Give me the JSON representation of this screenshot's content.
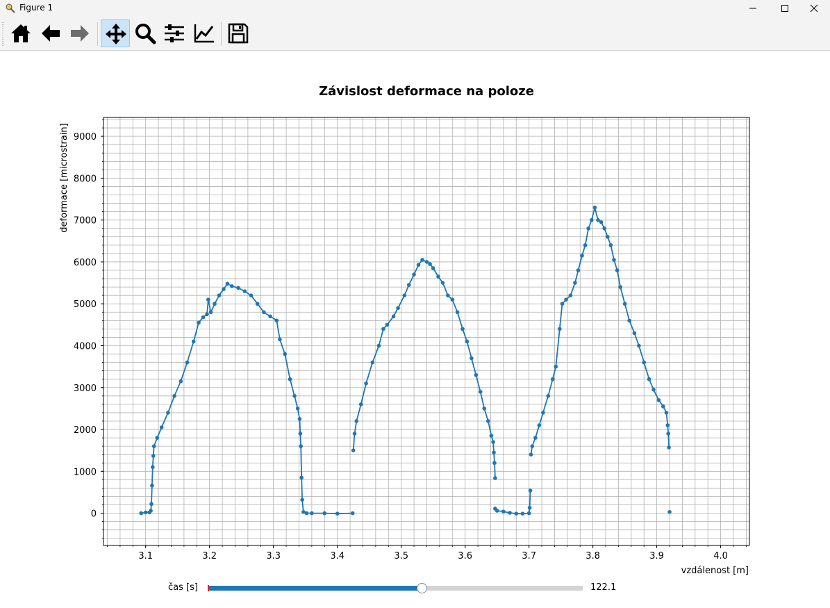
{
  "window": {
    "title": "Figure 1",
    "icons": [
      "app-icon",
      "minimize-icon",
      "maximize-icon",
      "close-icon"
    ]
  },
  "toolbar": {
    "buttons": [
      {
        "name": "home-button",
        "icon": "home-icon"
      },
      {
        "name": "back-button",
        "icon": "arrow-left-icon"
      },
      {
        "name": "forward-button",
        "icon": "arrow-right-icon"
      },
      {
        "name": "pan-button",
        "icon": "move-icon",
        "active": true
      },
      {
        "name": "zoom-button",
        "icon": "magnifier-icon"
      },
      {
        "name": "subplots-button",
        "icon": "sliders-icon"
      },
      {
        "name": "edit-axis-button",
        "icon": "chart-line-icon"
      },
      {
        "name": "save-button",
        "icon": "floppy-disk-icon"
      }
    ]
  },
  "slider": {
    "label": "čas [s]",
    "value_text": "122.1",
    "fill_fraction": 0.57
  },
  "colors": {
    "series": "#1f77b4",
    "grid": "#b0b0b0",
    "active_tool": "#cce4f7"
  },
  "chart_data": {
    "type": "line",
    "title": "Závislost deformace na poloze",
    "xlabel": "vzdálenost [m]",
    "ylabel": "deformace [microstrain]",
    "xlim": [
      3.034,
      4.045
    ],
    "ylim": [
      -770,
      9450
    ],
    "xticks": [
      3.1,
      3.2,
      3.3,
      3.4,
      3.5,
      3.6,
      3.7,
      3.8,
      3.9,
      4.0
    ],
    "xtick_labels": [
      "3.1",
      "3.2",
      "3.3",
      "3.4",
      "3.5",
      "3.6",
      "3.7",
      "3.8",
      "3.9",
      "4.0"
    ],
    "yticks": [
      0,
      1000,
      2000,
      3000,
      4000,
      5000,
      6000,
      7000,
      8000,
      9000
    ],
    "ytick_labels": [
      "0",
      "1000",
      "2000",
      "3000",
      "4000",
      "5000",
      "6000",
      "7000",
      "8000",
      "9000"
    ],
    "grid": true,
    "minor_grid": true,
    "markers": true,
    "series": [
      {
        "values": [
          [
            3.093,
            0
          ],
          [
            3.1,
            20
          ],
          [
            3.106,
            20
          ],
          [
            3.108,
            60
          ],
          [
            3.109,
            220
          ],
          [
            3.11,
            660
          ],
          [
            3.111,
            1100
          ],
          [
            3.112,
            1370
          ],
          [
            3.113,
            1600
          ],
          [
            3.118,
            1800
          ],
          [
            3.125,
            2050
          ],
          [
            3.135,
            2400
          ],
          [
            3.145,
            2800
          ],
          [
            3.155,
            3150
          ],
          [
            3.165,
            3600
          ],
          [
            3.175,
            4100
          ],
          [
            3.183,
            4550
          ],
          [
            3.19,
            4680
          ],
          [
            3.196,
            4750
          ],
          [
            3.198,
            5100
          ],
          [
            3.202,
            4800
          ],
          [
            3.208,
            5000
          ],
          [
            3.215,
            5200
          ],
          [
            3.222,
            5350
          ],
          [
            3.228,
            5480
          ],
          [
            3.235,
            5420
          ],
          [
            3.245,
            5380
          ],
          [
            3.255,
            5300
          ],
          [
            3.265,
            5200
          ],
          [
            3.275,
            5000
          ],
          [
            3.285,
            4800
          ],
          [
            3.295,
            4700
          ],
          [
            3.305,
            4600
          ],
          [
            3.31,
            4150
          ],
          [
            3.318,
            3800
          ],
          [
            3.326,
            3200
          ],
          [
            3.333,
            2800
          ],
          [
            3.338,
            2500
          ],
          [
            3.341,
            2250
          ],
          [
            3.342,
            1900
          ],
          [
            3.343,
            1600
          ],
          [
            3.344,
            850
          ],
          [
            3.345,
            320
          ],
          [
            3.347,
            30
          ],
          [
            3.352,
            0
          ],
          [
            3.36,
            0
          ],
          [
            3.38,
            0
          ],
          [
            3.4,
            -10
          ],
          [
            3.424,
            0
          ]
        ]
      },
      {
        "values": [
          [
            3.425,
            1500
          ],
          [
            3.427,
            1900
          ],
          [
            3.43,
            2200
          ],
          [
            3.437,
            2600
          ],
          [
            3.445,
            3100
          ],
          [
            3.455,
            3600
          ],
          [
            3.465,
            4000
          ],
          [
            3.472,
            4400
          ],
          [
            3.478,
            4500
          ],
          [
            3.488,
            4700
          ],
          [
            3.495,
            4900
          ],
          [
            3.505,
            5200
          ],
          [
            3.512,
            5450
          ],
          [
            3.52,
            5700
          ],
          [
            3.527,
            5930
          ],
          [
            3.533,
            6050
          ],
          [
            3.54,
            6000
          ],
          [
            3.545,
            5950
          ],
          [
            3.55,
            5850
          ],
          [
            3.558,
            5650
          ],
          [
            3.565,
            5500
          ],
          [
            3.573,
            5200
          ],
          [
            3.58,
            5100
          ],
          [
            3.588,
            4800
          ],
          [
            3.596,
            4400
          ],
          [
            3.603,
            4100
          ],
          [
            3.61,
            3700
          ],
          [
            3.617,
            3300
          ],
          [
            3.624,
            2900
          ],
          [
            3.63,
            2500
          ],
          [
            3.636,
            2200
          ],
          [
            3.641,
            1850
          ],
          [
            3.644,
            1700
          ],
          [
            3.645,
            1450
          ],
          [
            3.646,
            1200
          ],
          [
            3.647,
            840
          ]
        ]
      },
      {
        "values": [
          [
            3.647,
            110
          ],
          [
            3.65,
            60
          ],
          [
            3.66,
            40
          ],
          [
            3.67,
            10
          ],
          [
            3.68,
            -10
          ],
          [
            3.69,
            -10
          ],
          [
            3.7,
            0
          ],
          [
            3.701,
            130
          ],
          [
            3.702,
            540
          ]
        ]
      },
      {
        "values": [
          [
            3.703,
            1400
          ],
          [
            3.705,
            1600
          ],
          [
            3.71,
            1800
          ],
          [
            3.716,
            2100
          ],
          [
            3.722,
            2400
          ],
          [
            3.73,
            2800
          ],
          [
            3.737,
            3200
          ],
          [
            3.742,
            3500
          ],
          [
            3.748,
            4400
          ],
          [
            3.752,
            5000
          ],
          [
            3.758,
            5100
          ],
          [
            3.765,
            5200
          ],
          [
            3.772,
            5500
          ],
          [
            3.777,
            5800
          ],
          [
            3.783,
            6150
          ],
          [
            3.788,
            6400
          ],
          [
            3.793,
            6800
          ],
          [
            3.798,
            7000
          ],
          [
            3.803,
            7300
          ],
          [
            3.808,
            7000
          ],
          [
            3.813,
            6950
          ],
          [
            3.818,
            6800
          ],
          [
            3.823,
            6600
          ],
          [
            3.828,
            6400
          ],
          [
            3.833,
            6050
          ],
          [
            3.838,
            5800
          ],
          [
            3.843,
            5400
          ],
          [
            3.85,
            5000
          ],
          [
            3.857,
            4600
          ],
          [
            3.865,
            4300
          ],
          [
            3.872,
            4000
          ],
          [
            3.88,
            3600
          ],
          [
            3.888,
            3200
          ],
          [
            3.895,
            2950
          ],
          [
            3.903,
            2700
          ],
          [
            3.91,
            2550
          ],
          [
            3.915,
            2400
          ],
          [
            3.917,
            2100
          ],
          [
            3.918,
            1900
          ],
          [
            3.919,
            1570
          ]
        ]
      },
      {
        "values": [
          [
            3.92,
            30
          ]
        ]
      }
    ]
  }
}
